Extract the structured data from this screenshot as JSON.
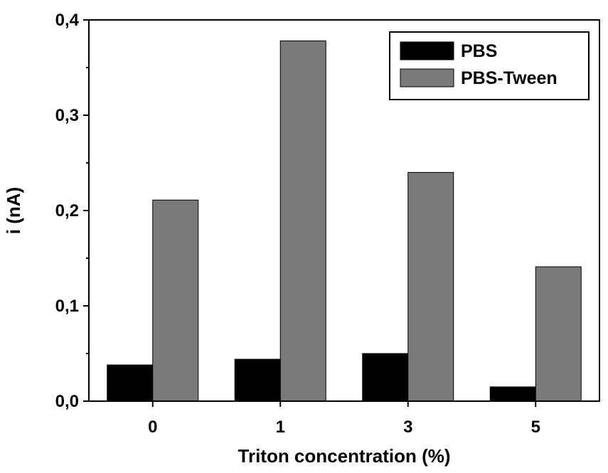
{
  "chart_data": {
    "type": "bar",
    "categories": [
      "0",
      "1",
      "3",
      "5"
    ],
    "series": [
      {
        "name": "PBS",
        "values": [
          0.038,
          0.044,
          0.05,
          0.015
        ],
        "color": "#000000"
      },
      {
        "name": "PBS-Tween",
        "values": [
          0.211,
          0.378,
          0.24,
          0.141
        ],
        "color": "#7a7a7a"
      }
    ],
    "xlabel": "Triton concentration (%)",
    "ylabel": "i (nA)",
    "ylim": [
      0,
      0.4
    ],
    "yticks": [
      "0,0",
      "0,1",
      "0,2",
      "0,3",
      "0,4"
    ],
    "grid": false,
    "legend_position": "top-right"
  }
}
